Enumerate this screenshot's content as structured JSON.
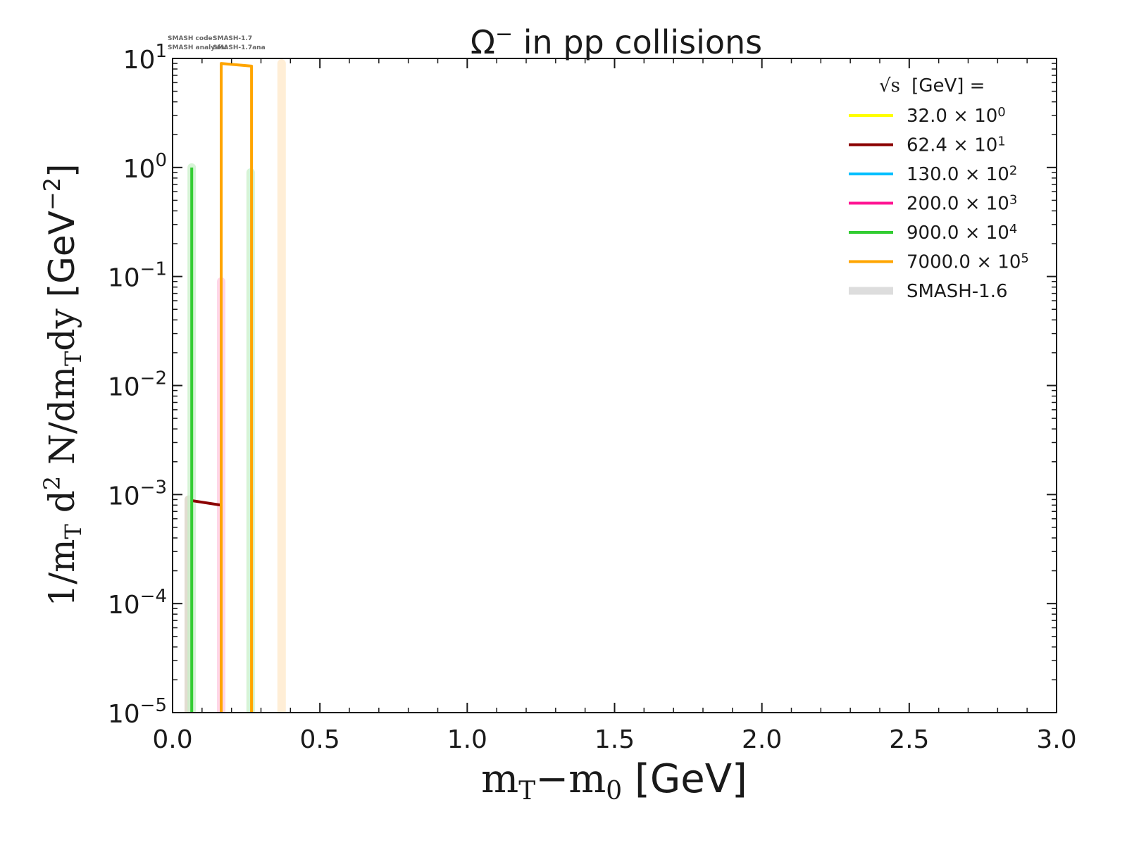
{
  "chart_data": {
    "type": "line",
    "title": "Ω⁻ in pp collisions",
    "title_main": "Ω",
    "title_sup": "−",
    "title_rest": " in pp collisions",
    "xlabel": "mT−m0 [GeV]",
    "ylabel": "1/mT d2 N/dmTdy [GeV−2]",
    "xlabel_parts": {
      "m1": "m",
      "s1": "T",
      "minus": "−m",
      "s2": "0",
      "unit": " [GeV]"
    },
    "ylabel_parts": {
      "a": "1/m",
      "b": "T",
      "c": " d",
      "d": "2",
      "e": " N/dm",
      "f": "T",
      "g": "dy",
      "h": " [GeV",
      "i": "−2",
      "j": "]"
    },
    "xlim": [
      0.0,
      3.0
    ],
    "ylim": [
      1e-05,
      10
    ],
    "yscale": "log",
    "x_ticks": [
      "0.0",
      "0.5",
      "1.0",
      "1.5",
      "2.0",
      "2.5",
      "3.0"
    ],
    "y_ticks": [
      {
        "base": "10",
        "exp": "1"
      },
      {
        "base": "10",
        "exp": "0"
      },
      {
        "base": "10",
        "exp": "−1"
      },
      {
        "base": "10",
        "exp": "−2"
      },
      {
        "base": "10",
        "exp": "−3"
      },
      {
        "base": "10",
        "exp": "−4"
      },
      {
        "base": "10",
        "exp": "−5"
      }
    ],
    "legend": {
      "placement": "top-right",
      "header_sqrt": "√s",
      "header_rest": " [GeV] =",
      "entries": [
        {
          "label": "32.0 × 10",
          "exp": "0",
          "color": "#ffff00"
        },
        {
          "label": "62.4 × 10",
          "exp": "1",
          "color": "#8b0000"
        },
        {
          "label": "130.0 × 10",
          "exp": "2",
          "color": "#00bfff"
        },
        {
          "label": "200.0 × 10",
          "exp": "3",
          "color": "#ff1493"
        },
        {
          "label": "900.0 × 10",
          "exp": "4",
          "color": "#32cd32"
        },
        {
          "label": "7000.0 × 10",
          "exp": "5",
          "color": "#ffa500"
        },
        {
          "label": "SMASH-1.6",
          "exp": "",
          "color": "#dddddd"
        }
      ]
    },
    "series": [
      {
        "name": "32.0",
        "color": "#ffff00",
        "x": [
          0.268,
          0.268
        ],
        "y": [
          1e-06,
          0.001
        ]
      },
      {
        "name": "62.4",
        "color": "#8b0000",
        "x": [
          0.065,
          0.165,
          0.165
        ],
        "y": [
          0.00088,
          0.0008,
          1e-06
        ]
      },
      {
        "name": "130.0",
        "color": "#00bfff",
        "x": [],
        "y": []
      },
      {
        "name": "200.0",
        "color": "#ff1493",
        "x": [],
        "y": []
      },
      {
        "name": "900.0",
        "color": "#32cd32",
        "x": [
          0.065,
          0.065
        ],
        "y": [
          1e-06,
          1.0
        ]
      },
      {
        "name": "7000.0",
        "color": "#ffa500",
        "x": [
          0.165,
          0.165,
          0.268,
          0.268
        ],
        "y": [
          1e-06,
          9.0,
          8.5,
          1e-06
        ]
      }
    ],
    "reference_series": [
      {
        "name": "SMASH-1.6 (62.4)",
        "color": "#d8d0c0",
        "x": [
          0.055,
          0.055
        ],
        "y": [
          1e-06,
          0.0009
        ]
      },
      {
        "name": "SMASH-1.6 (900.0)",
        "color": "#c8f0c8",
        "x": [
          0.065,
          0.065
        ],
        "y": [
          1e-06,
          1.0
        ]
      },
      {
        "name": "SMASH-1.6 (200.0)",
        "color": "#ffc8e0",
        "x": [
          0.165,
          0.165
        ],
        "y": [
          1e-06,
          0.09
        ]
      },
      {
        "name": "SMASH-1.6 (900.0 b)",
        "color": "#c8f0c8",
        "x": [
          0.265,
          0.265
        ],
        "y": [
          1e-06,
          0.9
        ]
      },
      {
        "name": "SMASH-1.6 (7000.0)",
        "color": "#ffe8c8",
        "x": [
          0.37,
          0.37
        ],
        "y": [
          1e-06,
          9.0
        ]
      }
    ]
  },
  "annotation": {
    "code_label": "SMASH code:",
    "code_value": "SMASH-1.7",
    "analysis_label": "SMASH analysis:",
    "analysis_value": "SMASH-1.7ana"
  }
}
